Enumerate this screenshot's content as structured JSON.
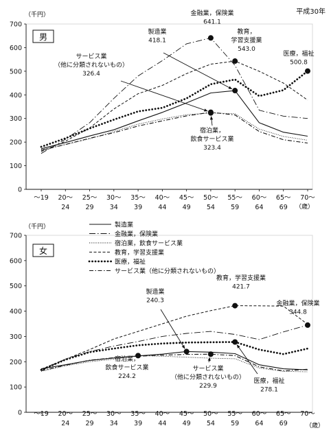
{
  "era_label": "平成30年",
  "colors": {
    "ink": "#111111",
    "grid": "#e6e6e6",
    "frame": "#cfcfcf"
  },
  "chart_data": [
    {
      "type": "line",
      "panel_label": "男",
      "ylabel": "（千円）",
      "xlabel_suffix": "（歳）",
      "ylim": [
        0,
        700
      ],
      "yticks": [
        0,
        100,
        200,
        300,
        400,
        500,
        600,
        700
      ],
      "categories": [
        [
          "～19",
          ""
        ],
        [
          "20～",
          "24"
        ],
        [
          "25～",
          "29"
        ],
        [
          "30～",
          "34"
        ],
        [
          "35～",
          "39"
        ],
        [
          "40～",
          "44"
        ],
        [
          "45～",
          "49"
        ],
        [
          "50～",
          "54"
        ],
        [
          "55～",
          "59"
        ],
        [
          "60～",
          "64"
        ],
        [
          "65～",
          "69"
        ],
        [
          "70～",
          ""
        ]
      ],
      "grid": false,
      "series": [
        {
          "name": "製造業",
          "style": "solid",
          "values": [
            172,
            198,
            226,
            252,
            290,
            326,
            366,
            408,
            418,
            282,
            242,
            225
          ]
        },
        {
          "name": "金融業，保険業",
          "style": "dashdot-long",
          "values": [
            152,
            212,
            282,
            385,
            480,
            545,
            616,
            641.1,
            525,
            335,
            310,
            300
          ]
        },
        {
          "name": "宿泊業，飲食サービス業",
          "style": "dotted-thin",
          "values": [
            168,
            190,
            214,
            245,
            276,
            298,
            316,
            323.4,
            320,
            255,
            224,
            208
          ]
        },
        {
          "name": "教育，学習支援業",
          "style": "dashed-fine",
          "values": [
            160,
            204,
            260,
            340,
            405,
            440,
            490,
            530,
            543.0,
            500,
            450,
            378
          ]
        },
        {
          "name": "医療，福祉",
          "style": "dotted-bold",
          "values": [
            180,
            216,
            258,
            295,
            330,
            345,
            385,
            445,
            465,
            395,
            420,
            500.8
          ]
        },
        {
          "name": "サービス業（他に分類されないもの）",
          "style": "dashdot",
          "values": [
            165,
            190,
            216,
            240,
            268,
            290,
            311,
            326.4,
            315,
            245,
            210,
            196
          ]
        }
      ],
      "annotations": [
        {
          "series": "製造業",
          "lines": [
            "製造業",
            "418.1"
          ],
          "x": "55～59",
          "y": 418.1
        },
        {
          "series": "金融業，保険業",
          "lines": [
            "金融業，保険業",
            "641.1"
          ],
          "x": "50～54",
          "y": 641.1
        },
        {
          "series": "教育，学習支援業",
          "lines": [
            "教育，",
            "学習支援業",
            "543.0"
          ],
          "x": "55～59",
          "y": 543.0
        },
        {
          "series": "医療，福祉",
          "lines": [
            "医療，福祉",
            "500.8"
          ],
          "x": "70～",
          "y": 500.8
        },
        {
          "series": "サービス業（他に分類されないもの）",
          "lines": [
            "サービス業",
            "（他に分類されないもの）",
            "326.4"
          ],
          "x": "50～54",
          "y": 326.4
        },
        {
          "series": "宿泊業，飲食サービス業",
          "lines": [
            "宿泊業，",
            "飲食サービス業",
            "323.4"
          ],
          "x": "50～54",
          "y": 323.4
        }
      ]
    },
    {
      "type": "line",
      "panel_label": "女",
      "ylabel": "（千円）",
      "xlabel_suffix": "（歳）",
      "ylim": [
        0,
        700
      ],
      "yticks": [
        0,
        100,
        200,
        300,
        400,
        500,
        600,
        700
      ],
      "categories": [
        [
          "～19",
          ""
        ],
        [
          "20～",
          "24"
        ],
        [
          "25～",
          "29"
        ],
        [
          "30～",
          "34"
        ],
        [
          "35～",
          "39"
        ],
        [
          "40～",
          "44"
        ],
        [
          "45～",
          "49"
        ],
        [
          "50～",
          "54"
        ],
        [
          "55～",
          "59"
        ],
        [
          "60～",
          "64"
        ],
        [
          "65～",
          "69"
        ],
        [
          "70～",
          ""
        ]
      ],
      "grid": false,
      "legend_position": "top-left",
      "series": [
        {
          "name": "製造業",
          "style": "solid",
          "values": [
            172,
            188,
            205,
            215,
            223,
            230,
            240.3,
            238,
            232,
            188,
            172,
            168
          ]
        },
        {
          "name": "金融業，保険業",
          "style": "dashdot-long",
          "values": [
            165,
            210,
            240,
            262,
            280,
            300,
            312,
            320,
            308,
            288,
            318,
            344.8
          ]
        },
        {
          "name": "宿泊業，飲食サービス業",
          "style": "dotted-thin",
          "values": [
            162,
            184,
            200,
            210,
            224.2,
            222,
            218,
            214,
            212,
            175,
            162,
            160
          ]
        },
        {
          "name": "教育，学習支援業",
          "style": "dashed-fine",
          "values": [
            170,
            210,
            248,
            290,
            320,
            350,
            380,
            402,
            421.7,
            421,
            420,
            348
          ]
        },
        {
          "name": "医療，福祉",
          "style": "dotted-bold",
          "values": [
            168,
            208,
            238,
            252,
            265,
            272,
            276,
            277,
            278.1,
            248,
            230,
            252
          ]
        },
        {
          "name": "サービス業（他に分類されないもの）",
          "style": "dashdot",
          "values": [
            165,
            186,
            206,
            216,
            222,
            226,
            229,
            229.9,
            224,
            180,
            164,
            170
          ]
        }
      ],
      "annotations": [
        {
          "series": "製造業",
          "lines": [
            "製造業",
            "240.3"
          ],
          "x": "45～49",
          "y": 240.3
        },
        {
          "series": "教育，学習支援業",
          "lines": [
            "教育，学習支援業",
            "421.7"
          ],
          "x": "55～59",
          "y": 421.7
        },
        {
          "series": "金融業，保険業",
          "lines": [
            "金融業，保険業",
            "344.8"
          ],
          "x": "70～",
          "y": 344.8
        },
        {
          "series": "宿泊業，飲食サービス業",
          "lines": [
            "宿泊業，",
            "飲食サービス業",
            "224.2"
          ],
          "x": "35～39",
          "y": 224.2
        },
        {
          "series": "サービス業（他に分類されないもの）",
          "lines": [
            "サービス業",
            "（他に分類されないもの）",
            "229.9"
          ],
          "x": "50～54",
          "y": 229.9
        },
        {
          "series": "医療，福祉",
          "lines": [
            "医療，福祉",
            "278.1"
          ],
          "x": "55～59",
          "y": 278.1
        }
      ]
    }
  ]
}
